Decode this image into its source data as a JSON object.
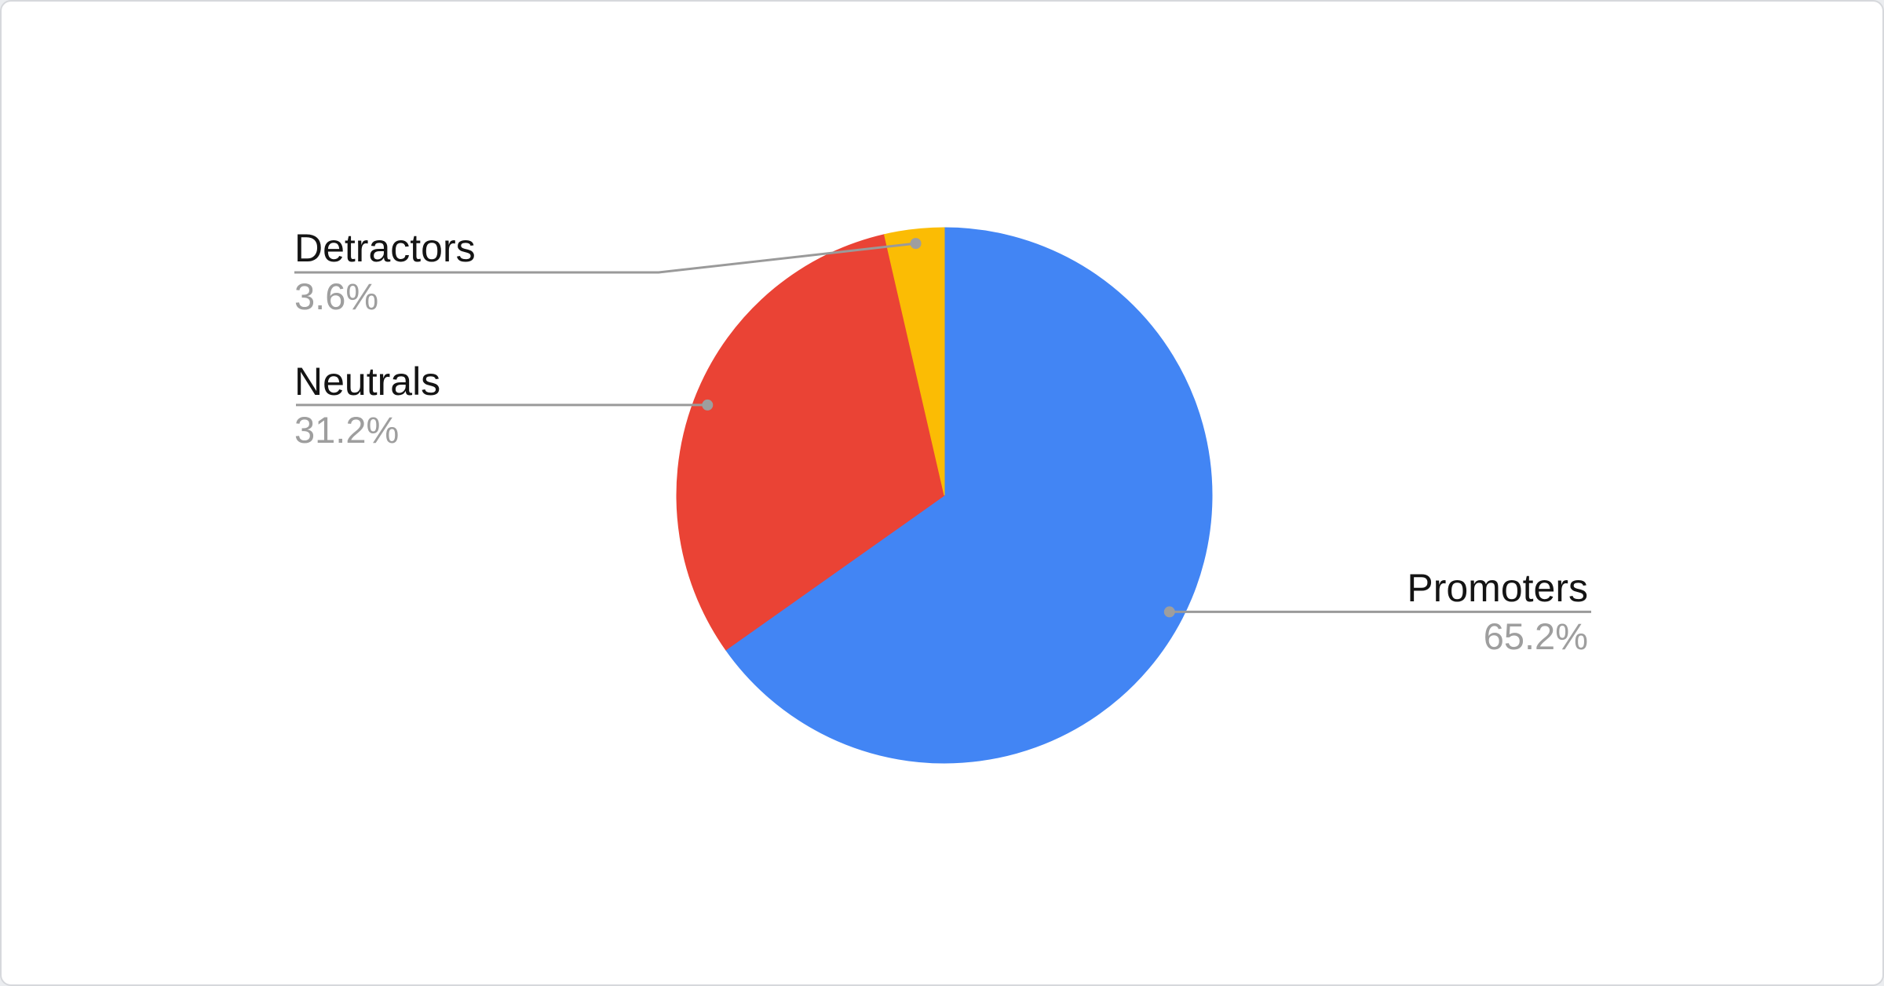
{
  "chart_data": {
    "type": "pie",
    "title": "",
    "direction": "clockwise",
    "start_angle_deg": 0,
    "legend": "callout-labels",
    "slices": [
      {
        "label": "Promoters",
        "value": 65.2,
        "display": "65.2%",
        "color": "#4285F4"
      },
      {
        "label": "Neutrals",
        "value": 31.2,
        "display": "31.2%",
        "color": "#EA4335"
      },
      {
        "label": "Detractors",
        "value": 3.6,
        "display": "3.6%",
        "color": "#FBBC04"
      }
    ]
  },
  "palette": {
    "promoters_blue": "#4285F4",
    "neutrals_red": "#EA4335",
    "detractors_yellow": "#FBBC04",
    "label_text": "#141414",
    "percent_text": "#9e9e9e",
    "callout_line": "#9a9a9a",
    "callout_dot": "#9e9e9e",
    "card_background": "#ffffff",
    "card_border": "#d6d8dc"
  }
}
